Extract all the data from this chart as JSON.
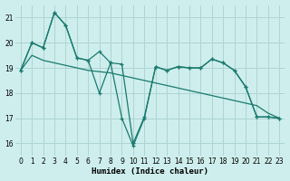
{
  "xlabel": "Humidex (Indice chaleur)",
  "ylabel": "",
  "background_color": "#ceeeed",
  "grid_color": "#aed4d3",
  "line_color": "#1a7a6e",
  "xlim": [
    -0.5,
    23.5
  ],
  "ylim": [
    15.5,
    21.5
  ],
  "yticks": [
    16,
    17,
    18,
    19,
    20,
    21
  ],
  "xticks": [
    0,
    1,
    2,
    3,
    4,
    5,
    6,
    7,
    8,
    9,
    10,
    11,
    12,
    13,
    14,
    15,
    16,
    17,
    18,
    19,
    20,
    21,
    22,
    23
  ],
  "series1_x": [
    0,
    1,
    2,
    3,
    4,
    5,
    6,
    7,
    8,
    9,
    10,
    11,
    12,
    13,
    14,
    15,
    16,
    17,
    18,
    19,
    20,
    21,
    22,
    23
  ],
  "series1_y": [
    18.9,
    20.0,
    19.8,
    21.2,
    20.7,
    19.4,
    19.3,
    19.65,
    19.2,
    19.15,
    16.0,
    17.05,
    19.05,
    18.9,
    19.05,
    19.0,
    19.0,
    19.35,
    19.2,
    18.9,
    18.25,
    17.05,
    17.05,
    17.0
  ],
  "series2_x": [
    0,
    1,
    2,
    3,
    4,
    5,
    6,
    7,
    8,
    9,
    10,
    11,
    12,
    13,
    14,
    15,
    16,
    17,
    18,
    19,
    20,
    21,
    22,
    23
  ],
  "series2_y": [
    18.9,
    19.5,
    19.3,
    19.2,
    19.1,
    19.0,
    18.9,
    18.85,
    18.8,
    18.7,
    18.6,
    18.5,
    18.4,
    18.3,
    18.2,
    18.1,
    18.0,
    17.9,
    17.8,
    17.7,
    17.6,
    17.5,
    17.2,
    17.0
  ],
  "series3_x": [
    0,
    1,
    2,
    3,
    4,
    5,
    6,
    7,
    8,
    9,
    10,
    11,
    12,
    13,
    14,
    15,
    16,
    17,
    18,
    19,
    20,
    21,
    22,
    23
  ],
  "series3_y": [
    18.9,
    20.0,
    19.8,
    21.2,
    20.7,
    19.4,
    19.3,
    18.0,
    19.2,
    17.0,
    15.9,
    17.0,
    19.05,
    18.9,
    19.05,
    19.0,
    19.0,
    19.35,
    19.2,
    18.9,
    18.25,
    17.05,
    17.05,
    17.0
  ]
}
